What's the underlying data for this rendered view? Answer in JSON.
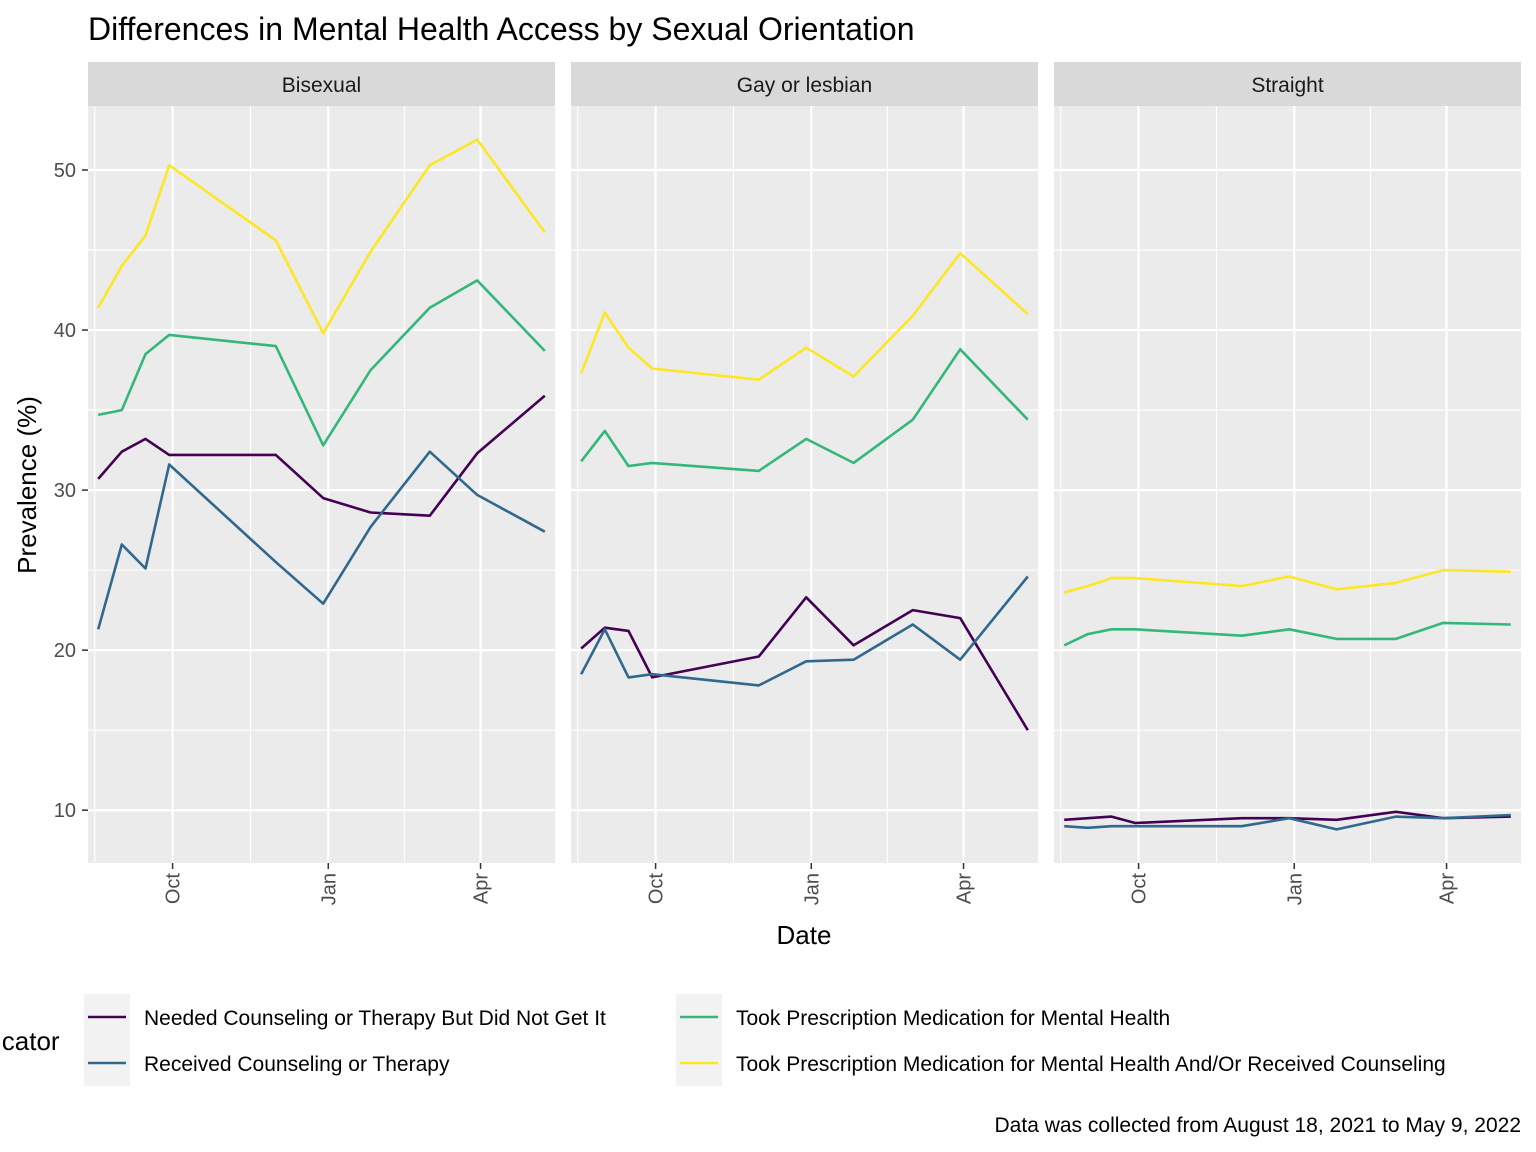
{
  "chart_data": {
    "type": "line",
    "title": "Differences in Mental Health Access by Sexual Orientation",
    "xlabel": "Date",
    "ylabel": "Prevalence (%)",
    "caption": "Data was collected from August 18, 2021 to May 9, 2022",
    "legend_title": "icator",
    "legend_position": "bottom",
    "ylim": [
      6.7,
      54
    ],
    "xlim": [
      "2021-08-12",
      "2022-05-15"
    ],
    "y_ticks": [
      10,
      20,
      30,
      40,
      50
    ],
    "x_ticks": [
      {
        "date": "2021-10-01",
        "label": "Oct"
      },
      {
        "date": "2022-01-01",
        "label": "Jan"
      },
      {
        "date": "2022-04-01",
        "label": "Apr"
      }
    ],
    "grid": true,
    "x": [
      "2021-08-18",
      "2021-09-01",
      "2021-09-15",
      "2021-09-29",
      "2021-12-01",
      "2021-12-29",
      "2022-01-26",
      "2022-03-02",
      "2022-03-30",
      "2022-05-09"
    ],
    "series_styles": [
      {
        "name": "Needed Counseling or Therapy But Did Not Get It",
        "color": "#440154"
      },
      {
        "name": "Received Counseling or Therapy",
        "color": "#31688e"
      },
      {
        "name": "Took Prescription Medication for Mental Health",
        "color": "#35b779"
      },
      {
        "name": "Took Prescription Medication for Mental Health And/Or Received Counseling",
        "color": "#fde725"
      }
    ],
    "panels": [
      {
        "label": "Bisexual",
        "series": [
          {
            "name": "Needed Counseling or Therapy But Did Not Get It",
            "values": [
              30.7,
              32.4,
              33.2,
              32.2,
              32.2,
              29.5,
              28.6,
              28.4,
              32.3,
              35.9
            ]
          },
          {
            "name": "Received Counseling or Therapy",
            "values": [
              21.3,
              26.6,
              25.1,
              31.6,
              25.5,
              22.9,
              27.7,
              32.4,
              29.7,
              27.4
            ]
          },
          {
            "name": "Took Prescription Medication for Mental Health",
            "values": [
              34.7,
              35.0,
              38.5,
              39.7,
              39.0,
              32.8,
              37.5,
              41.4,
              43.1,
              38.7
            ]
          },
          {
            "name": "Took Prescription Medication for Mental Health And/Or Received Counseling",
            "values": [
              41.4,
              44.0,
              45.9,
              50.3,
              45.6,
              39.8,
              44.9,
              50.3,
              51.9,
              46.1
            ]
          }
        ]
      },
      {
        "label": "Gay or lesbian",
        "series": [
          {
            "name": "Needed Counseling or Therapy But Did Not Get It",
            "values": [
              20.1,
              21.4,
              21.2,
              18.3,
              19.6,
              23.3,
              20.3,
              22.5,
              22.0,
              15.0
            ]
          },
          {
            "name": "Received Counseling or Therapy",
            "values": [
              18.5,
              21.3,
              18.3,
              18.5,
              17.8,
              19.3,
              19.4,
              21.6,
              19.4,
              24.6
            ]
          },
          {
            "name": "Took Prescription Medication for Mental Health",
            "values": [
              31.8,
              33.7,
              31.5,
              31.7,
              31.2,
              33.2,
              31.7,
              34.4,
              38.8,
              34.4
            ]
          },
          {
            "name": "Took Prescription Medication for Mental Health And/Or Received Counseling",
            "values": [
              37.3,
              41.1,
              38.9,
              37.6,
              36.9,
              38.9,
              37.1,
              40.9,
              44.8,
              41.0
            ]
          }
        ]
      },
      {
        "label": "Straight",
        "series": [
          {
            "name": "Needed Counseling or Therapy But Did Not Get It",
            "values": [
              9.4,
              9.5,
              9.6,
              9.2,
              9.5,
              9.5,
              9.4,
              9.9,
              9.5,
              9.6
            ]
          },
          {
            "name": "Received Counseling or Therapy",
            "values": [
              9.0,
              8.9,
              9.0,
              9.0,
              9.0,
              9.5,
              8.8,
              9.6,
              9.5,
              9.7
            ]
          },
          {
            "name": "Took Prescription Medication for Mental Health",
            "values": [
              20.3,
              21.0,
              21.3,
              21.3,
              20.9,
              21.3,
              20.7,
              20.7,
              21.7,
              21.6
            ]
          },
          {
            "name": "Took Prescription Medication for Mental Health And/Or Received Counseling",
            "values": [
              23.6,
              24.0,
              24.5,
              24.5,
              24.0,
              24.6,
              23.8,
              24.2,
              25.0,
              24.9
            ]
          }
        ]
      }
    ]
  }
}
